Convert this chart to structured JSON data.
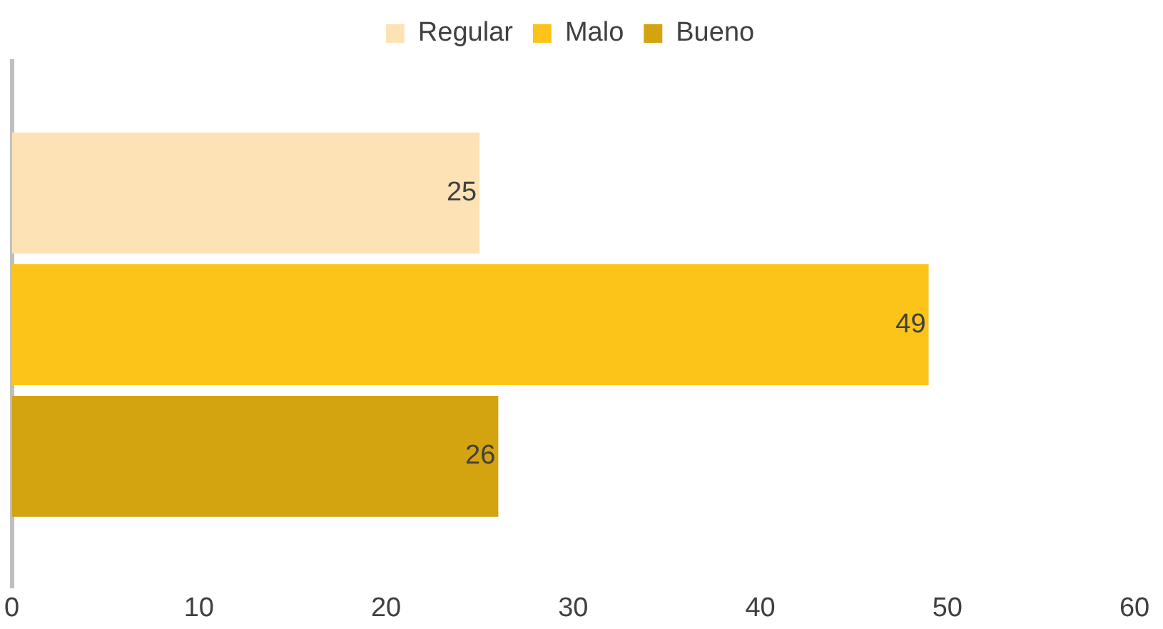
{
  "chart_data": {
    "type": "bar",
    "orientation": "horizontal",
    "categories": [
      null
    ],
    "series": [
      {
        "name": "Regular",
        "color": "#fde2b6",
        "values": [
          25
        ]
      },
      {
        "name": "Malo",
        "color": "#fcc419",
        "values": [
          49
        ]
      },
      {
        "name": "Bueno",
        "color": "#d3a40f",
        "values": [
          26
        ]
      }
    ],
    "xlim": [
      0,
      60
    ],
    "xticks": [
      0,
      10,
      20,
      30,
      40,
      50,
      60
    ],
    "data_labels": true,
    "grid": false,
    "legend": "top"
  }
}
